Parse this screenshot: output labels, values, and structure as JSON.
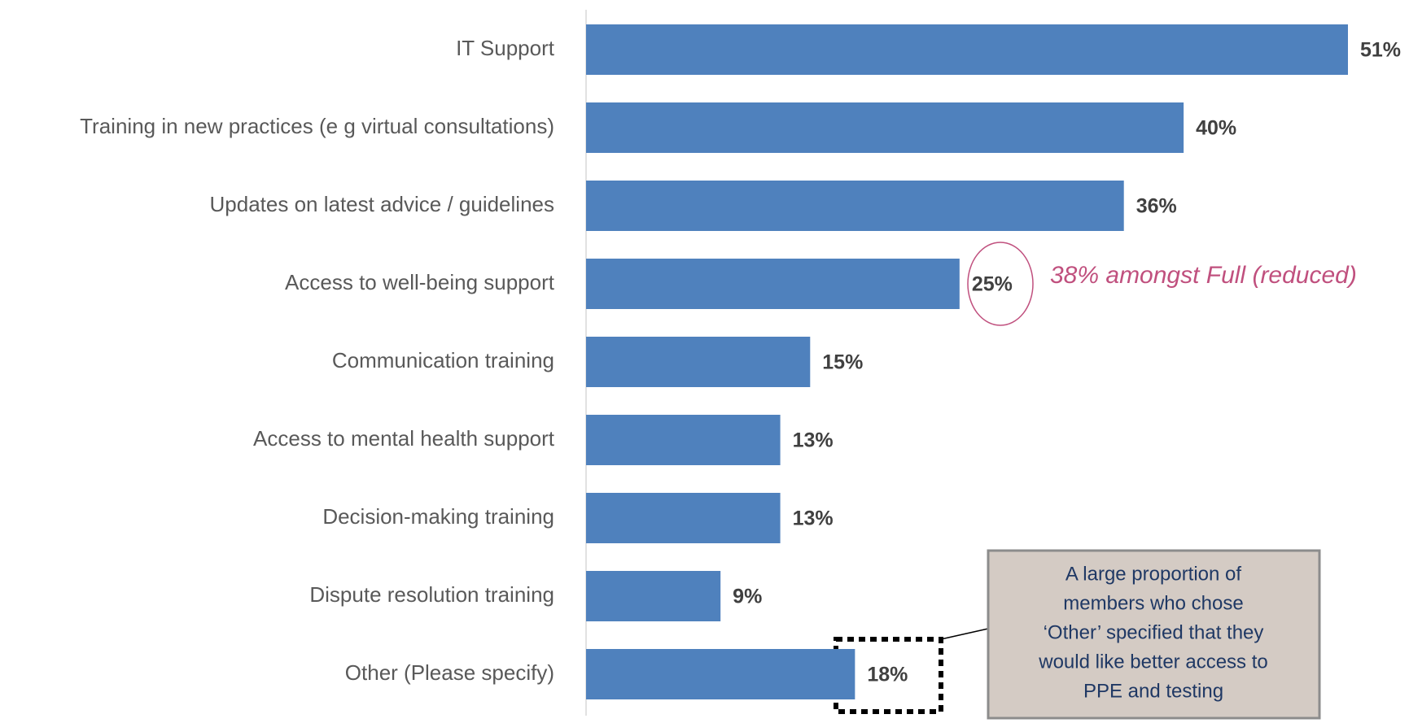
{
  "chart_data": {
    "type": "bar",
    "orientation": "horizontal",
    "categories": [
      "IT Support",
      "Training in new practices (e g  virtual consultations)",
      "Updates on latest advice / guidelines",
      "Access to well-being support",
      "Communication training",
      "Access to mental health support",
      "Decision-making training",
      "Dispute resolution training",
      "Other (Please specify)"
    ],
    "values": [
      51,
      40,
      36,
      25,
      15,
      13,
      13,
      9,
      18
    ],
    "value_labels": [
      "51%",
      "40%",
      "36%",
      "25%",
      "15%",
      "13%",
      "13%",
      "9%",
      "18%"
    ],
    "color": "#4f81bd",
    "annotations": [
      "38% amongst Full (reduced)"
    ],
    "callout": [
      "A large proportion of",
      "members who chose",
      "‘Other’ specified that they",
      "would like better access to",
      "PPE and testing"
    ]
  }
}
